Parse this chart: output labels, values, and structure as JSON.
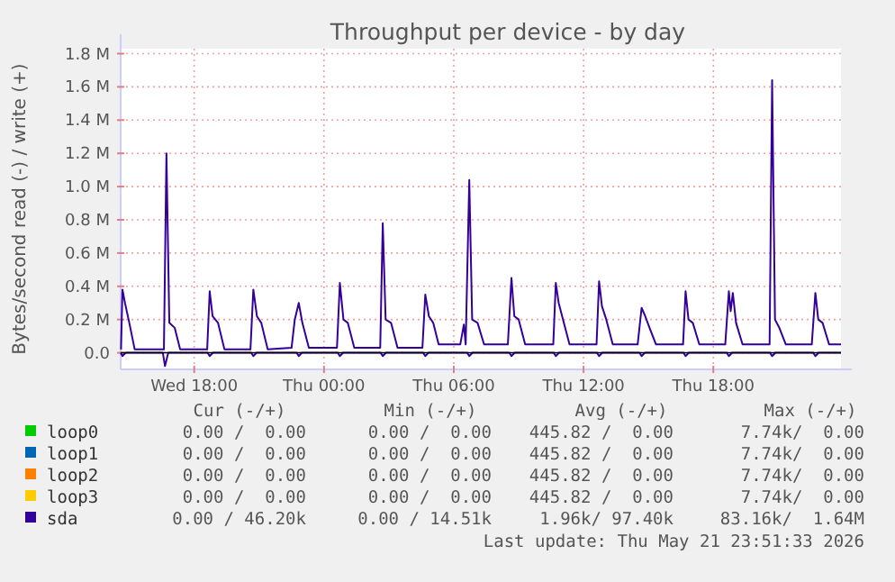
{
  "chart_data": {
    "type": "line",
    "title": "Throughput per device - by day",
    "ylabel": "Bytes/second read (-) / write (+)",
    "xlim": [
      "2026-05-20T14:36",
      "2026-05-21T23:54"
    ],
    "ylim": [
      -0.1,
      1.83
    ],
    "xticks": [
      {
        "value": "2026-05-20T18:00",
        "label": "Wed 18:00"
      },
      {
        "value": "2026-05-21T00:00",
        "label": "Thu 00:00"
      },
      {
        "value": "2026-05-21T06:00",
        "label": "Thu 06:00"
      },
      {
        "value": "2026-05-21T12:00",
        "label": "Thu 12:00"
      },
      {
        "value": "2026-05-21T18:00",
        "label": "Thu 18:00"
      }
    ],
    "yticks": [
      {
        "value": 0,
        "label": "0.0"
      },
      {
        "value": 0.2,
        "label": "0.2 M"
      },
      {
        "value": 0.4,
        "label": "0.4 M"
      },
      {
        "value": 0.6,
        "label": "0.6 M"
      },
      {
        "value": 0.8,
        "label": "0.8 M"
      },
      {
        "value": 1.0,
        "label": "1.0 M"
      },
      {
        "value": 1.2,
        "label": "1.2 M"
      },
      {
        "value": 1.4,
        "label": "1.4 M"
      },
      {
        "value": 1.6,
        "label": "1.6 M"
      },
      {
        "value": 1.8,
        "label": "1.8 M"
      }
    ],
    "grid": true,
    "legend": "bottom",
    "series": [
      {
        "name": "loop0",
        "color": "#00cc00"
      },
      {
        "name": "loop1",
        "color": "#0066b3"
      },
      {
        "name": "loop2",
        "color": "#ff8000"
      },
      {
        "name": "loop3",
        "color": "#ffcc00"
      },
      {
        "name": "sda",
        "color": "#330099",
        "x": [
          "2026-05-20T14:37",
          "2026-05-20T14:41",
          "2026-05-20T14:48",
          "2026-05-20T15:00",
          "2026-05-20T15:15",
          "2026-05-20T16:36",
          "2026-05-20T16:43",
          "2026-05-20T16:51",
          "2026-05-20T17:06",
          "2026-05-20T17:21",
          "2026-05-20T18:36",
          "2026-05-20T18:43",
          "2026-05-20T18:51",
          "2026-05-20T19:06",
          "2026-05-20T19:24",
          "2026-05-20T20:36",
          "2026-05-20T20:44",
          "2026-05-20T20:54",
          "2026-05-20T21:06",
          "2026-05-20T21:24",
          "2026-05-20T22:30",
          "2026-05-20T22:39",
          "2026-05-20T22:50",
          "2026-05-20T23:00",
          "2026-05-20T23:18",
          "2026-05-21T00:36",
          "2026-05-21T00:44",
          "2026-05-21T00:54",
          "2026-05-21T01:06",
          "2026-05-21T01:24",
          "2026-05-21T02:36",
          "2026-05-21T02:43",
          "2026-05-21T02:51",
          "2026-05-21T03:06",
          "2026-05-21T03:24",
          "2026-05-21T04:33",
          "2026-05-21T04:41",
          "2026-05-21T04:51",
          "2026-05-21T05:03",
          "2026-05-21T05:18",
          "2026-05-21T06:18",
          "2026-05-21T06:28",
          "2026-05-21T06:33",
          "2026-05-21T06:43",
          "2026-05-21T06:51",
          "2026-05-21T07:06",
          "2026-05-21T07:24",
          "2026-05-21T08:30",
          "2026-05-21T08:40",
          "2026-05-21T08:48",
          "2026-05-21T09:00",
          "2026-05-21T09:18",
          "2026-05-21T10:36",
          "2026-05-21T10:43",
          "2026-05-21T10:51",
          "2026-05-21T11:03",
          "2026-05-21T11:21",
          "2026-05-21T12:36",
          "2026-05-21T12:43",
          "2026-05-21T12:51",
          "2026-05-21T13:03",
          "2026-05-21T13:21",
          "2026-05-21T14:30",
          "2026-05-21T14:41",
          "2026-05-21T14:51",
          "2026-05-21T15:03",
          "2026-05-21T15:21",
          "2026-05-21T16:36",
          "2026-05-21T16:43",
          "2026-05-21T16:51",
          "2026-05-21T17:03",
          "2026-05-21T17:21",
          "2026-05-21T18:33",
          "2026-05-21T18:43",
          "2026-05-21T18:48",
          "2026-05-21T18:54",
          "2026-05-21T19:03",
          "2026-05-21T19:21",
          "2026-05-21T20:36",
          "2026-05-21T20:43",
          "2026-05-21T20:51",
          "2026-05-21T21:03",
          "2026-05-21T21:21",
          "2026-05-21T22:33",
          "2026-05-21T22:43",
          "2026-05-21T22:51",
          "2026-05-21T23:03",
          "2026-05-21T23:21",
          "2026-05-21T23:54"
        ],
        "values": [
          0.02,
          0.38,
          0.3,
          0.18,
          0.02,
          0.02,
          1.2,
          0.18,
          0.15,
          0.02,
          0.02,
          0.37,
          0.22,
          0.18,
          0.02,
          0.02,
          0.38,
          0.22,
          0.18,
          0.02,
          0.03,
          0.2,
          0.3,
          0.18,
          0.03,
          0.03,
          0.42,
          0.2,
          0.18,
          0.03,
          0.03,
          0.78,
          0.2,
          0.18,
          0.03,
          0.03,
          0.35,
          0.22,
          0.18,
          0.05,
          0.05,
          0.17,
          0.05,
          1.04,
          0.2,
          0.18,
          0.05,
          0.05,
          0.45,
          0.22,
          0.2,
          0.05,
          0.05,
          0.42,
          0.3,
          0.2,
          0.05,
          0.05,
          0.43,
          0.28,
          0.2,
          0.05,
          0.05,
          0.27,
          0.22,
          0.15,
          0.05,
          0.05,
          0.37,
          0.2,
          0.18,
          0.05,
          0.05,
          0.37,
          0.25,
          0.36,
          0.18,
          0.05,
          0.05,
          1.64,
          0.2,
          0.15,
          0.05,
          0.05,
          0.36,
          0.2,
          0.18,
          0.05,
          0.05
        ]
      },
      {
        "color": "#330099",
        "x": [
          "2026-05-20T14:36",
          "2026-05-20T14:41",
          "2026-05-20T14:50",
          "2026-05-20T16:33",
          "2026-05-20T16:39",
          "2026-05-20T16:48",
          "2026-05-20T18:37",
          "2026-05-20T18:43",
          "2026-05-20T18:52",
          "2026-05-20T20:38",
          "2026-05-20T20:44",
          "2026-05-20T20:53",
          "2026-05-20T22:44",
          "2026-05-20T22:50",
          "2026-05-20T22:59",
          "2026-05-21T00:38",
          "2026-05-21T00:44",
          "2026-05-21T00:53",
          "2026-05-21T02:37",
          "2026-05-21T02:43",
          "2026-05-21T02:52",
          "2026-05-21T04:35",
          "2026-05-21T04:41",
          "2026-05-21T04:50",
          "2026-05-21T06:37",
          "2026-05-21T06:43",
          "2026-05-21T06:52",
          "2026-05-21T08:34",
          "2026-05-21T08:40",
          "2026-05-21T08:49",
          "2026-05-21T10:37",
          "2026-05-21T10:43",
          "2026-05-21T10:52",
          "2026-05-21T12:37",
          "2026-05-21T12:43",
          "2026-05-21T12:52",
          "2026-05-21T14:35",
          "2026-05-21T14:41",
          "2026-05-21T14:50",
          "2026-05-21T16:37",
          "2026-05-21T16:43",
          "2026-05-21T16:52",
          "2026-05-21T18:37",
          "2026-05-21T18:43",
          "2026-05-21T18:52",
          "2026-05-21T20:37",
          "2026-05-21T20:43",
          "2026-05-21T20:52",
          "2026-05-21T22:37",
          "2026-05-21T22:43",
          "2026-05-21T22:52",
          "2026-05-21T23:54"
        ],
        "values": [
          0,
          -0.02,
          0,
          0,
          -0.08,
          0,
          0,
          -0.02,
          0,
          0,
          -0.02,
          0,
          0,
          -0.02,
          0,
          0,
          -0.02,
          0,
          0,
          -0.02,
          0,
          0,
          -0.02,
          0,
          0,
          -0.02,
          0,
          0,
          -0.02,
          0,
          0,
          -0.02,
          0,
          0,
          -0.02,
          0,
          0,
          -0.02,
          0,
          0,
          -0.02,
          0,
          0,
          -0.02,
          0,
          0,
          -0.02,
          0,
          0,
          -0.02,
          0,
          0
        ]
      }
    ],
    "annotations": [
      "Cur (-/+)",
      "Min (-/+)",
      "Avg (-/+)",
      "Max (-/+)",
      "0.00 /  0.00",
      "0.00 /  0.00",
      "445.82 /  0.00",
      "7.74k/  0.00",
      "0.00 /  0.00",
      "0.00 /  0.00",
      "445.82 /  0.00",
      "7.74k/  0.00",
      "0.00 /  0.00",
      "0.00 /  0.00",
      "445.82 /  0.00",
      "7.74k/  0.00",
      "0.00 /  0.00",
      "0.00 /  0.00",
      "445.82 /  0.00",
      "7.74k/  0.00",
      "0.00 / 46.20k",
      "0.00 / 14.51k",
      "1.96k/ 97.40k",
      "83.16k/  1.64M",
      "Last update: Thu May 21 23:51:33 2026"
    ]
  }
}
